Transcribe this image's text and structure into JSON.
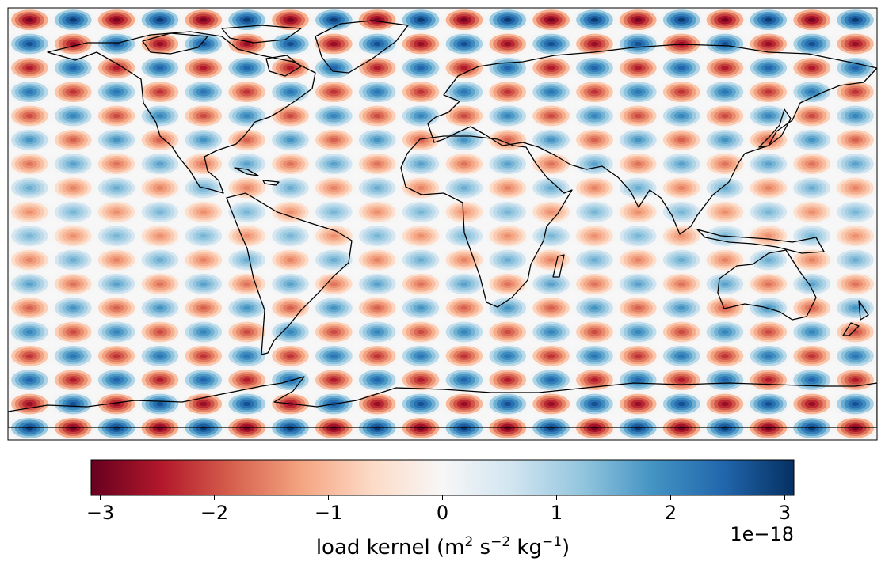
{
  "chart_data": {
    "type": "heatmap",
    "projection": "plate-carree-global",
    "field": {
      "longitude_range": [
        -180,
        180
      ],
      "latitude_range": [
        -90,
        90
      ],
      "zonal_wavenumber": 10,
      "meridional_bands": 18,
      "peak_amplitude": 3e-18,
      "pattern": "sign-alternating checkerboard of cells across a 10 x 18 grid; the row nearest each pole has the strongest values; cell at lon -180, southernmost row is positive (blue); cell at lon -180, northernmost row is negative (red)"
    },
    "colormap": "RdBu",
    "colormap_stops": [
      "#67001f",
      "#b2182b",
      "#d6604d",
      "#f4a582",
      "#fddbc7",
      "#f7f7f7",
      "#d1e5f0",
      "#92c5de",
      "#4393c3",
      "#2166ac",
      "#053061"
    ],
    "coastlines": true,
    "colorbar": {
      "orientation": "horizontal",
      "location": "bottom",
      "range": [
        -3.08,
        3.08
      ],
      "tick_values": [
        -3,
        -2,
        -1,
        0,
        1,
        2,
        3
      ],
      "tick_labels": [
        "−3",
        "−2",
        "−1",
        "0",
        "1",
        "2",
        "3"
      ],
      "offset_text": "1e−18",
      "label_text": "load kernel (m",
      "label_exp_1": "2",
      "label_mid_1": " s",
      "label_exp_2": "−2",
      "label_mid_2": " kg",
      "label_exp_3": "−1",
      "label_close": ")"
    }
  }
}
